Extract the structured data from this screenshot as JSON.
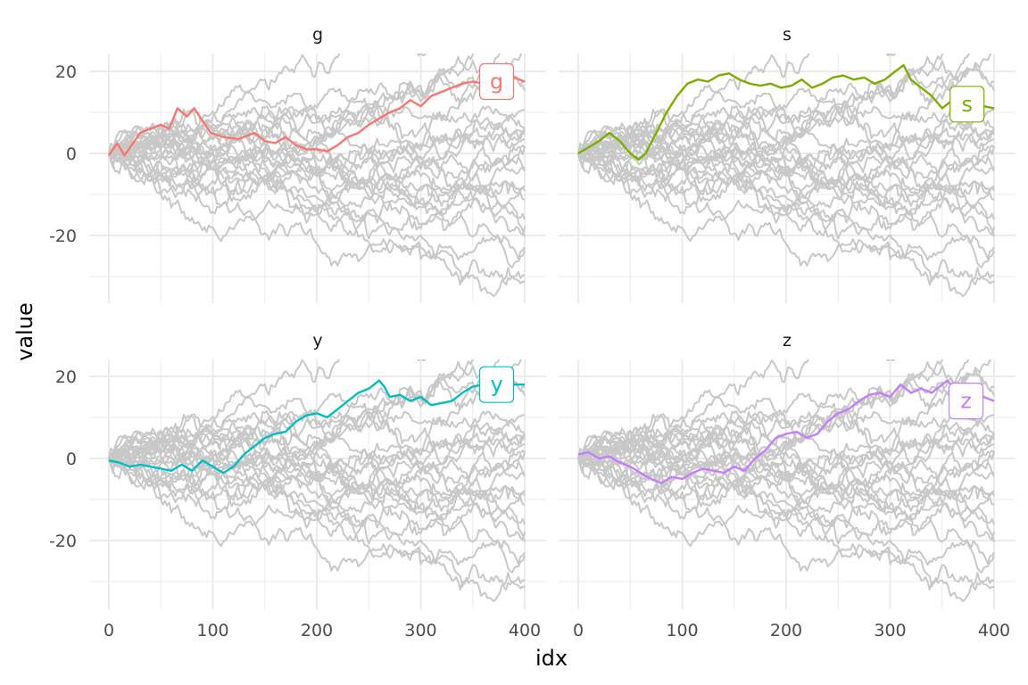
{
  "chart_data": {
    "type": "line",
    "layout": "facet-grid-2x2",
    "xlabel": "idx",
    "ylabel": "value",
    "xlim": [
      0,
      400
    ],
    "ylim": [
      -35,
      23
    ],
    "x_ticks": [
      0,
      100,
      200,
      300,
      400
    ],
    "y_ticks": [
      -20,
      0,
      20
    ],
    "grid": true,
    "legend": "none",
    "background_series_color": "#c8c8c8",
    "background_series_count": 26,
    "facets": [
      {
        "strip": "g",
        "label": "g",
        "color": "#F8766D",
        "points": [
          [
            0,
            -0.5
          ],
          [
            8,
            2.5
          ],
          [
            15,
            -0.5
          ],
          [
            22,
            2
          ],
          [
            30,
            5
          ],
          [
            40,
            6
          ],
          [
            50,
            7
          ],
          [
            58,
            6
          ],
          [
            66,
            11
          ],
          [
            75,
            9
          ],
          [
            82,
            11
          ],
          [
            90,
            8
          ],
          [
            98,
            5
          ],
          [
            110,
            4
          ],
          [
            125,
            3.5
          ],
          [
            140,
            5
          ],
          [
            150,
            3
          ],
          [
            160,
            2.5
          ],
          [
            170,
            4
          ],
          [
            180,
            2
          ],
          [
            190,
            1
          ],
          [
            200,
            1
          ],
          [
            210,
            0.5
          ],
          [
            220,
            2
          ],
          [
            230,
            4
          ],
          [
            240,
            5
          ],
          [
            250,
            7
          ],
          [
            260,
            8.5
          ],
          [
            270,
            10
          ],
          [
            280,
            11
          ],
          [
            290,
            13
          ],
          [
            300,
            11.5
          ],
          [
            310,
            14
          ],
          [
            320,
            15
          ],
          [
            330,
            16
          ],
          [
            340,
            17
          ],
          [
            350,
            17.5
          ],
          [
            360,
            17
          ],
          [
            370,
            18
          ],
          [
            380,
            18
          ],
          [
            390,
            18.5
          ],
          [
            400,
            17.5
          ]
        ],
        "label_x": 373,
        "label_y": 17.5
      },
      {
        "strip": "s",
        "label": "s",
        "color": "#7CAE00",
        "points": [
          [
            0,
            0
          ],
          [
            10,
            1.5
          ],
          [
            20,
            3
          ],
          [
            30,
            5
          ],
          [
            40,
            3
          ],
          [
            50,
            0
          ],
          [
            58,
            -1.5
          ],
          [
            65,
            0
          ],
          [
            75,
            5
          ],
          [
            85,
            10
          ],
          [
            95,
            14
          ],
          [
            105,
            17
          ],
          [
            115,
            18
          ],
          [
            125,
            17.5
          ],
          [
            135,
            19
          ],
          [
            145,
            19.5
          ],
          [
            155,
            18
          ],
          [
            165,
            17
          ],
          [
            175,
            16.5
          ],
          [
            185,
            17
          ],
          [
            195,
            16
          ],
          [
            205,
            16.5
          ],
          [
            215,
            18
          ],
          [
            225,
            16
          ],
          [
            235,
            17
          ],
          [
            245,
            18.5
          ],
          [
            255,
            19
          ],
          [
            265,
            18
          ],
          [
            275,
            18.5
          ],
          [
            285,
            17
          ],
          [
            295,
            18
          ],
          [
            305,
            20
          ],
          [
            313,
            21.5
          ],
          [
            320,
            18
          ],
          [
            330,
            16
          ],
          [
            340,
            14
          ],
          [
            350,
            11
          ],
          [
            360,
            13
          ],
          [
            370,
            12
          ],
          [
            380,
            12.5
          ],
          [
            390,
            11.5
          ],
          [
            400,
            11
          ]
        ],
        "label_x": 374,
        "label_y": 12
      },
      {
        "strip": "y",
        "label": "y",
        "color": "#00BFC4",
        "points": [
          [
            0,
            -0.5
          ],
          [
            10,
            -1
          ],
          [
            20,
            -2
          ],
          [
            30,
            -1.5
          ],
          [
            40,
            -2
          ],
          [
            50,
            -2.5
          ],
          [
            60,
            -3
          ],
          [
            70,
            -1.5
          ],
          [
            80,
            -3
          ],
          [
            90,
            -0.5
          ],
          [
            100,
            -2
          ],
          [
            110,
            -3.5
          ],
          [
            120,
            -2
          ],
          [
            130,
            1
          ],
          [
            140,
            3
          ],
          [
            150,
            5
          ],
          [
            160,
            6
          ],
          [
            170,
            6.5
          ],
          [
            180,
            9
          ],
          [
            190,
            10.5
          ],
          [
            200,
            11
          ],
          [
            210,
            10
          ],
          [
            220,
            12
          ],
          [
            230,
            14
          ],
          [
            240,
            16
          ],
          [
            250,
            17
          ],
          [
            260,
            19
          ],
          [
            265,
            17.5
          ],
          [
            270,
            15
          ],
          [
            280,
            15.5
          ],
          [
            290,
            14
          ],
          [
            300,
            15
          ],
          [
            310,
            13
          ],
          [
            320,
            13.5
          ],
          [
            330,
            14
          ],
          [
            340,
            16
          ],
          [
            350,
            17.5
          ],
          [
            360,
            18
          ],
          [
            370,
            19
          ],
          [
            380,
            17.5
          ],
          [
            390,
            18
          ],
          [
            400,
            18
          ]
        ],
        "label_x": 373,
        "label_y": 18
      },
      {
        "strip": "z",
        "label": "z",
        "color": "#C77CFF",
        "points": [
          [
            0,
            1
          ],
          [
            10,
            1.5
          ],
          [
            20,
            0
          ],
          [
            30,
            0.5
          ],
          [
            40,
            -1
          ],
          [
            50,
            -2
          ],
          [
            60,
            -3.5
          ],
          [
            70,
            -5
          ],
          [
            80,
            -6
          ],
          [
            90,
            -4.5
          ],
          [
            100,
            -5
          ],
          [
            110,
            -3.5
          ],
          [
            120,
            -2.5
          ],
          [
            130,
            -3
          ],
          [
            140,
            -3.5
          ],
          [
            150,
            -2
          ],
          [
            160,
            -3
          ],
          [
            170,
            0
          ],
          [
            180,
            2
          ],
          [
            190,
            5
          ],
          [
            200,
            6
          ],
          [
            210,
            6.5
          ],
          [
            220,
            5
          ],
          [
            230,
            6
          ],
          [
            240,
            9
          ],
          [
            250,
            11
          ],
          [
            260,
            12
          ],
          [
            270,
            14
          ],
          [
            280,
            15.5
          ],
          [
            290,
            16
          ],
          [
            300,
            15
          ],
          [
            310,
            18
          ],
          [
            320,
            16
          ],
          [
            330,
            17
          ],
          [
            340,
            16
          ],
          [
            350,
            18
          ],
          [
            355,
            19
          ],
          [
            360,
            17.5
          ],
          [
            370,
            16
          ],
          [
            380,
            17
          ],
          [
            390,
            15
          ],
          [
            400,
            14
          ]
        ],
        "label_x": 373,
        "label_y": 14
      }
    ]
  }
}
